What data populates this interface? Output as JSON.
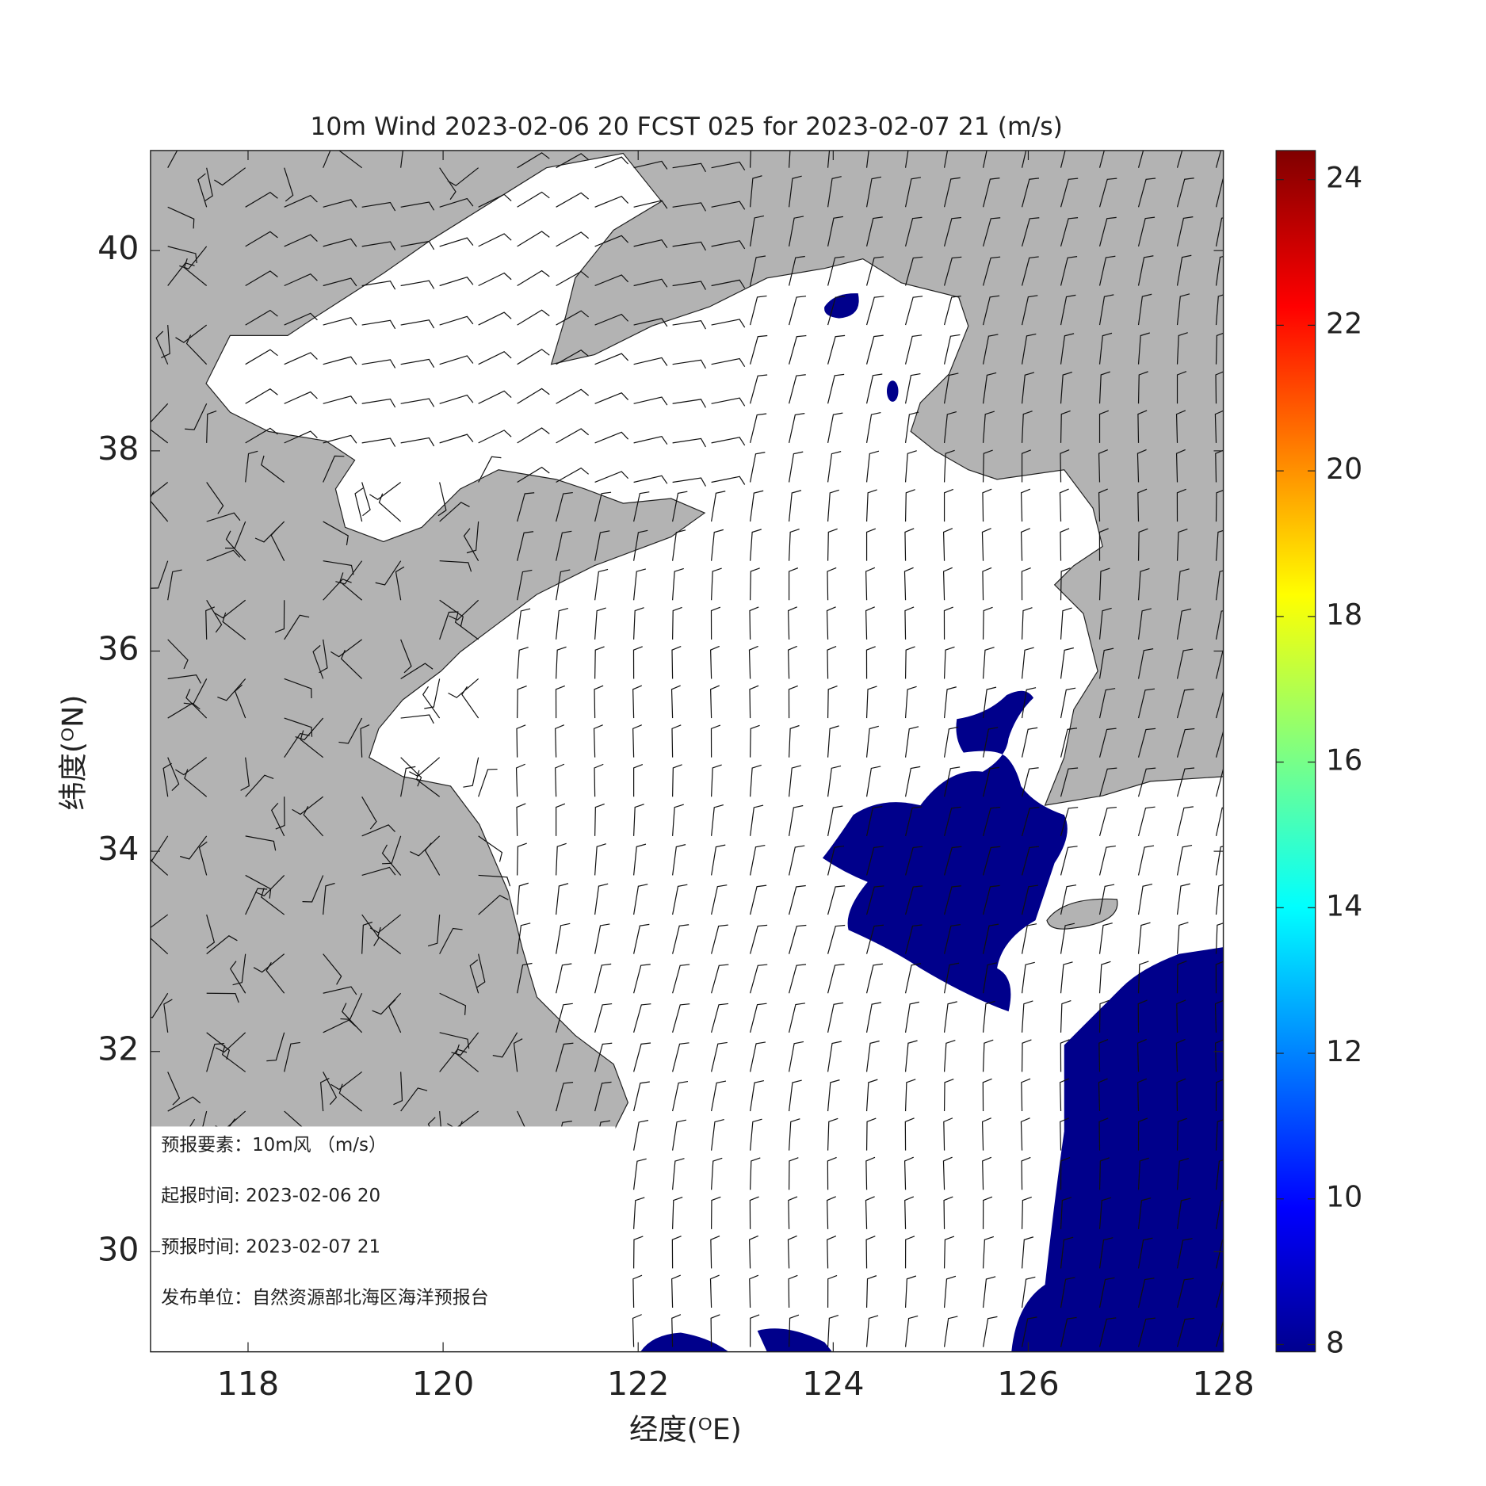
{
  "chart_data": {
    "type": "map",
    "title": "10m Wind 2023-02-06 20 FCST 025 for 2023-02-07 21 (m/s)",
    "x_label": "经度(ᴼE)",
    "y_label": "纬度(ᴼN)",
    "xlim": [
      117,
      128
    ],
    "xticks": [
      118,
      120,
      122,
      124,
      126,
      128
    ],
    "ylim": [
      29,
      41
    ],
    "yticks": [
      30,
      32,
      34,
      36,
      38,
      40
    ],
    "colorbar": {
      "clim": [
        7.9,
        24.4
      ],
      "ticks": [
        8,
        10,
        12,
        14,
        16,
        18,
        20,
        22,
        24
      ]
    }
  },
  "info_box": [
    "预报要素：10m风 （m/s）",
    "起报时间: 2023-02-06 20",
    "预报时间: 2023-02-07 21",
    "发布单位：自然资源部北海区海洋预报台"
  ]
}
